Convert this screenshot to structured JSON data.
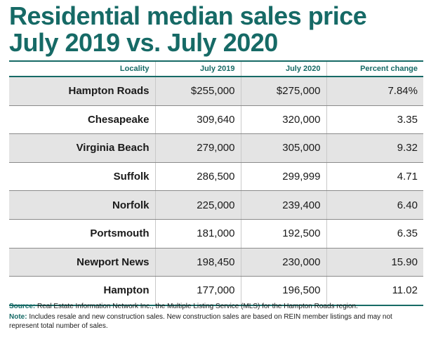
{
  "chart_data": {
    "type": "table",
    "title": "Residential median sales price July 2019 vs. July 2020",
    "title_lines": [
      "Residential median sales price",
      "July 2019 vs. July 2020"
    ],
    "columns": [
      "Locality",
      "July 2019",
      "July 2020",
      "Percent change"
    ],
    "rows": [
      [
        "Hampton Roads",
        "$255,000",
        "$275,000",
        "7.84%"
      ],
      [
        "Chesapeake",
        "309,640",
        "320,000",
        "3.35"
      ],
      [
        "Virginia Beach",
        "279,000",
        "305,000",
        "9.32"
      ],
      [
        "Suffolk",
        "286,500",
        "299,999",
        "4.71"
      ],
      [
        "Norfolk",
        "225,000",
        "239,400",
        "6.40"
      ],
      [
        "Portsmouth",
        "181,000",
        "192,500",
        "6.35"
      ],
      [
        "Newport News",
        "198,450",
        "230,000",
        "15.90"
      ],
      [
        "Hampton",
        "177,000",
        "196,500",
        "11.02"
      ]
    ]
  },
  "notes": {
    "source_label": "Source:",
    "source_text": "Real Estate Information Network Inc., the Multiple Listing Service (MLS) for the Hampton Roads region.",
    "note_label": "Note:",
    "note_text": "Includes resale and new construction sales. New construction sales are based on REIN member listings and may not represent total number of sales."
  },
  "colors": {
    "accent": "#166a66",
    "band": "#e4e4e4"
  }
}
